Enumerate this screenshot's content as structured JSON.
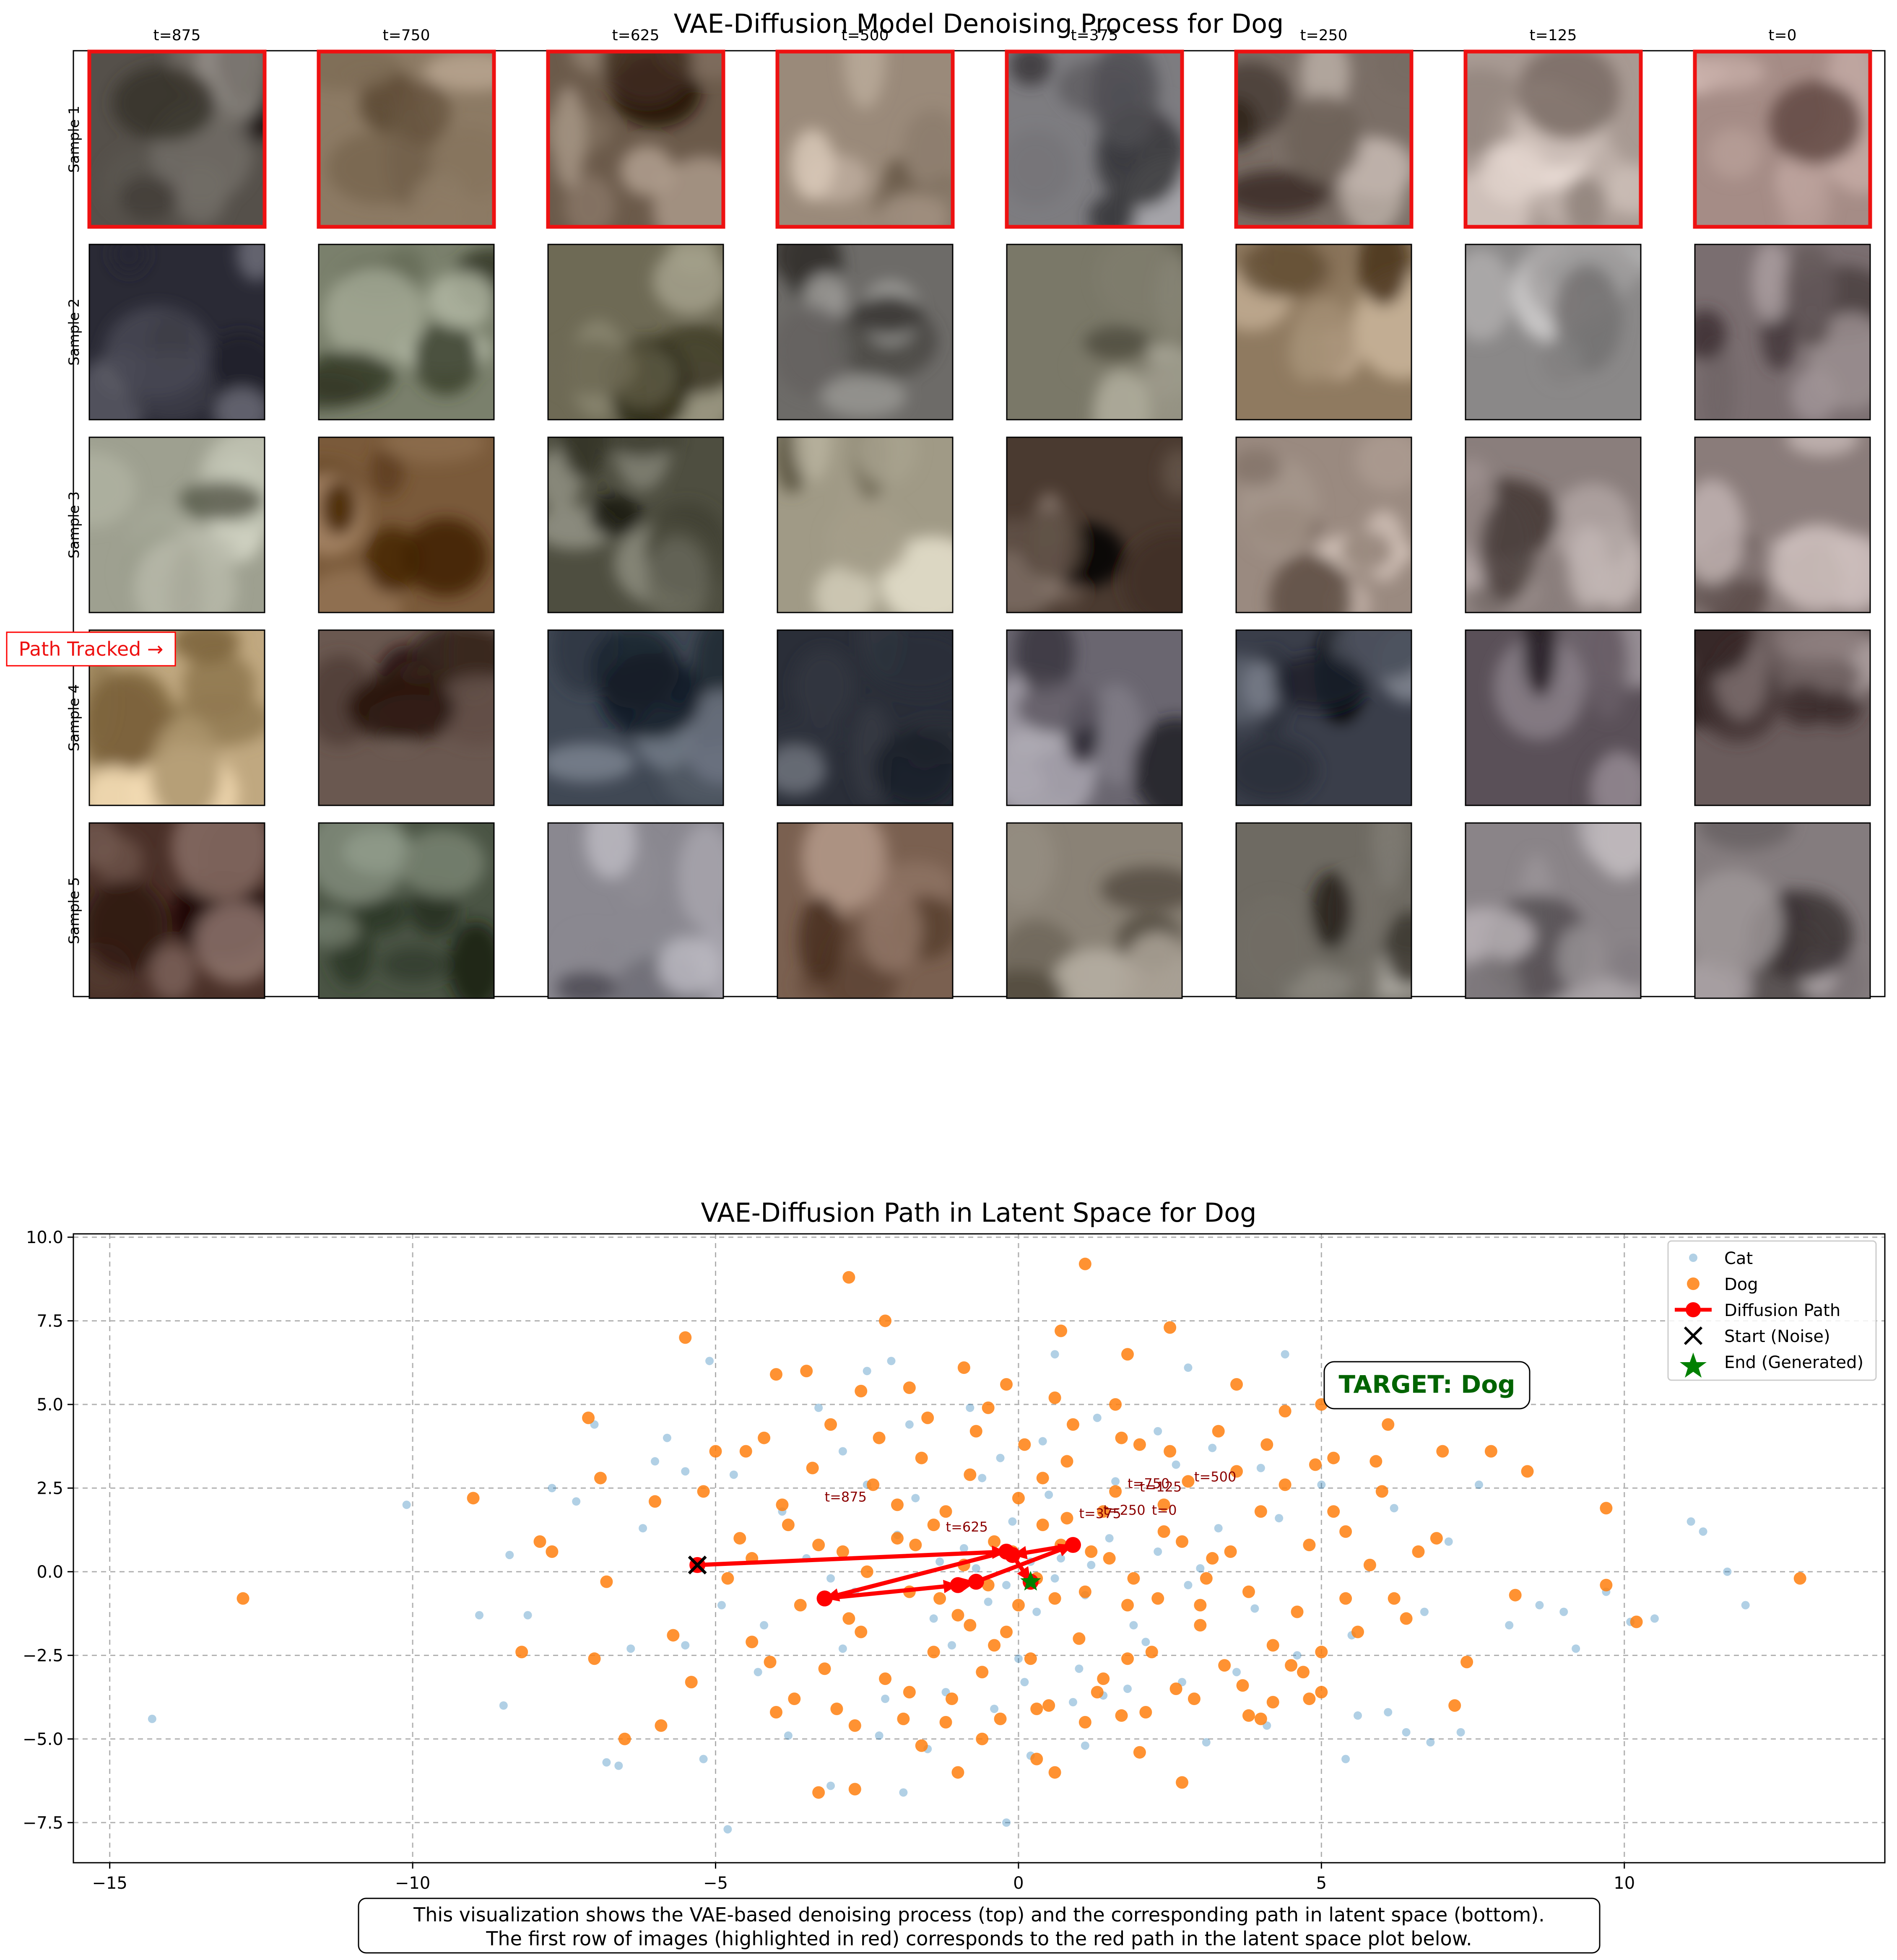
{
  "top": {
    "title": "VAE-Diffusion Model Denoising Process for Dog",
    "column_labels": [
      "t=875",
      "t=750",
      "t=625",
      "t=500",
      "t=375",
      "t=250",
      "t=125",
      "t=0"
    ],
    "row_labels": [
      "Sample 1",
      "Sample 2",
      "Sample 3",
      "Sample 4",
      "Sample 5"
    ],
    "highlight_row": 0,
    "highlight_color": "#ee1111",
    "path_tracked_label": "Path Tracked →",
    "cell_colors": [
      [
        "#55504a",
        "#8c7a64",
        "#6b5a4a",
        "#9a8a7a",
        "#7d7c80",
        "#7a6e66",
        "#a89a93",
        "#a58c86"
      ],
      [
        "#2a2a35",
        "#7a806c",
        "#6e6a55",
        "#6d6b68",
        "#7a7868",
        "#8f7a60",
        "#8a8888",
        "#7a6e70"
      ],
      [
        "#9ea090",
        "#7a5a3a",
        "#4e4e40",
        "#a09a86",
        "#4a3a30",
        "#9a8a80",
        "#8a7e7c",
        "#8a7c7a"
      ],
      [
        "#c0a880",
        "#6a5850",
        "#404854",
        "#2a2e38",
        "#6a6670",
        "#3a3e4a",
        "#5a5058",
        "#6a5c5c"
      ],
      [
        "#4a3028",
        "#4a5444",
        "#8a8890",
        "#7a6050",
        "#8a8276",
        "#6e6a62",
        "#8a8488",
        "#847c7e"
      ]
    ]
  },
  "caption": {
    "line1": "This visualization shows the VAE-based denoising process (top) and the corresponding path in latent space (bottom).",
    "line2": "The first row of images (highlighted in red) corresponds to the red path in the latent space plot below."
  },
  "target_label": "TARGET: Dog",
  "chart_data": {
    "type": "scatter",
    "title": "VAE-Diffusion Path in Latent Space for Dog",
    "xlabel": "",
    "ylabel": "",
    "xlim": [
      -15.6,
      14.3
    ],
    "ylim": [
      -8.7,
      10.1
    ],
    "xticks": [
      -15,
      -10,
      -5,
      0,
      5,
      10
    ],
    "yticks": [
      -7.5,
      -5.0,
      -2.5,
      0.0,
      2.5,
      5.0,
      7.5,
      10.0
    ],
    "grid": true,
    "legend_position": "top-right",
    "legend": [
      "Cat",
      "Dog",
      "Diffusion Path",
      "Start (Noise)",
      "End (Generated)"
    ],
    "cat_color": "#1f77b4",
    "dog_color": "#ff7f0e",
    "path_color": "#ff0000",
    "end_color": "#008000",
    "cat_points": [
      [
        -14.3,
        -4.4
      ],
      [
        -10.1,
        2.0
      ],
      [
        -8.9,
        -1.3
      ],
      [
        -8.5,
        -4.0
      ],
      [
        -8.4,
        0.5
      ],
      [
        -8.1,
        -1.3
      ],
      [
        -7.7,
        2.5
      ],
      [
        -7.3,
        2.1
      ],
      [
        -7.0,
        4.4
      ],
      [
        -6.8,
        -5.7
      ],
      [
        -6.6,
        -5.8
      ],
      [
        -6.4,
        -2.3
      ],
      [
        -5.8,
        4.0
      ],
      [
        -5.5,
        -2.2
      ],
      [
        -5.2,
        -5.6
      ],
      [
        -5.1,
        6.3
      ],
      [
        -4.9,
        -1.0
      ],
      [
        -4.8,
        -7.7
      ],
      [
        -3.1,
        -6.4
      ],
      [
        -2.5,
        6.0
      ],
      [
        -2.1,
        6.3
      ],
      [
        -1.9,
        -6.6
      ],
      [
        -1.5,
        -5.3
      ],
      [
        -0.2,
        -7.5
      ],
      [
        0.2,
        -5.5
      ],
      [
        0.6,
        6.5
      ],
      [
        1.1,
        -5.2
      ],
      [
        2.8,
        6.1
      ],
      [
        3.1,
        -5.1
      ],
      [
        4.1,
        -4.6
      ],
      [
        4.4,
        6.5
      ],
      [
        5.6,
        -4.3
      ],
      [
        5.4,
        -5.6
      ],
      [
        6.1,
        -4.2
      ],
      [
        6.4,
        -4.8
      ],
      [
        6.8,
        -5.1
      ],
      [
        7.3,
        -4.8
      ],
      [
        7.6,
        2.6
      ],
      [
        8.1,
        -1.6
      ],
      [
        8.6,
        -1.0
      ],
      [
        9.0,
        -1.2
      ],
      [
        9.2,
        -2.3
      ],
      [
        9.7,
        -0.6
      ],
      [
        10.1,
        -1.5
      ],
      [
        10.5,
        -1.4
      ],
      [
        11.1,
        1.5
      ],
      [
        11.3,
        1.2
      ],
      [
        11.7,
        0.0
      ],
      [
        12.0,
        -1.0
      ],
      [
        -6.2,
        1.3
      ],
      [
        -6.0,
        3.3
      ],
      [
        -5.5,
        3.0
      ],
      [
        -4.7,
        2.9
      ],
      [
        -4.3,
        -3.0
      ],
      [
        -3.8,
        -4.9
      ],
      [
        -3.3,
        4.9
      ],
      [
        -2.9,
        3.6
      ],
      [
        -2.3,
        -4.9
      ],
      [
        -1.8,
        4.4
      ],
      [
        -1.2,
        -3.6
      ],
      [
        -0.8,
        4.9
      ],
      [
        -0.4,
        -4.1
      ],
      [
        0.4,
        3.9
      ],
      [
        0.9,
        -3.9
      ],
      [
        1.3,
        4.6
      ],
      [
        1.8,
        -3.5
      ],
      [
        2.3,
        4.2
      ],
      [
        2.7,
        -3.3
      ],
      [
        3.2,
        3.7
      ],
      [
        3.6,
        -3.0
      ],
      [
        4.0,
        3.1
      ],
      [
        4.6,
        -2.5
      ],
      [
        5.0,
        2.6
      ],
      [
        5.5,
        -1.9
      ],
      [
        6.2,
        1.9
      ],
      [
        6.7,
        -1.2
      ],
      [
        7.1,
        0.9
      ],
      [
        -3.5,
        0.4
      ],
      [
        -2.7,
        -0.6
      ],
      [
        -2.0,
        1.1
      ],
      [
        -1.4,
        -1.4
      ],
      [
        -0.9,
        0.7
      ],
      [
        -0.5,
        -0.9
      ],
      [
        -0.1,
        1.5
      ],
      [
        0.3,
        -1.2
      ],
      [
        0.7,
        0.4
      ],
      [
        1.1,
        -0.7
      ],
      [
        1.5,
        1.0
      ],
      [
        1.9,
        -1.6
      ],
      [
        2.3,
        0.6
      ],
      [
        2.8,
        -0.4
      ],
      [
        3.3,
        1.3
      ],
      [
        -1.7,
        2.2
      ],
      [
        -1.1,
        -2.2
      ],
      [
        -0.6,
        2.8
      ],
      [
        0.0,
        -2.6
      ],
      [
        0.5,
        2.3
      ],
      [
        1.0,
        -2.9
      ],
      [
        1.6,
        2.7
      ],
      [
        2.1,
        -2.1
      ],
      [
        -3.9,
        1.8
      ],
      [
        -4.2,
        -1.6
      ],
      [
        -2.5,
        2.6
      ],
      [
        -2.9,
        -2.3
      ],
      [
        3.9,
        -1.1
      ],
      [
        4.3,
        1.6
      ],
      [
        2.6,
        3.2
      ],
      [
        -0.3,
        3.4
      ],
      [
        0.1,
        -3.3
      ],
      [
        1.4,
        -3.7
      ],
      [
        -2.2,
        -3.8
      ],
      [
        -3.1,
        -0.2
      ],
      [
        3.0,
        0.1
      ],
      [
        -0.7,
        0.1
      ],
      [
        0.2,
        0.3
      ],
      [
        -0.2,
        -0.4
      ],
      [
        0.6,
        -0.2
      ],
      [
        -1.3,
        0.3
      ],
      [
        1.2,
        0.2
      ]
    ],
    "dog_points": [
      [
        -12.8,
        -0.8
      ],
      [
        -9.0,
        2.2
      ],
      [
        -8.2,
        -2.4
      ],
      [
        -7.9,
        0.9
      ],
      [
        -7.7,
        0.6
      ],
      [
        -7.1,
        4.6
      ],
      [
        -7.0,
        -2.6
      ],
      [
        -6.9,
        2.8
      ],
      [
        -6.8,
        -0.3
      ],
      [
        -6.5,
        -5.0
      ],
      [
        -6.0,
        2.1
      ],
      [
        -5.9,
        -4.6
      ],
      [
        -5.7,
        -1.9
      ],
      [
        -5.5,
        7.0
      ],
      [
        -5.4,
        -3.3
      ],
      [
        -4.6,
        1.0
      ],
      [
        -4.4,
        -2.1
      ],
      [
        -4.2,
        4.0
      ],
      [
        -4.0,
        5.9
      ],
      [
        -3.5,
        6.0
      ],
      [
        -3.3,
        -6.6
      ],
      [
        -3.0,
        -4.1
      ],
      [
        -2.8,
        8.8
      ],
      [
        -2.7,
        -6.5
      ],
      [
        -2.6,
        5.4
      ],
      [
        -2.2,
        7.5
      ],
      [
        -1.8,
        5.5
      ],
      [
        -1.8,
        -3.6
      ],
      [
        -1.2,
        -4.5
      ],
      [
        -1.0,
        -6.0
      ],
      [
        -0.9,
        6.1
      ],
      [
        -0.5,
        4.9
      ],
      [
        -0.2,
        5.6
      ],
      [
        0.3,
        -4.1
      ],
      [
        0.3,
        -5.6
      ],
      [
        0.6,
        -6.0
      ],
      [
        0.7,
        7.2
      ],
      [
        1.1,
        9.2
      ],
      [
        1.1,
        -4.5
      ],
      [
        1.7,
        -4.3
      ],
      [
        1.8,
        6.5
      ],
      [
        2.0,
        -5.4
      ],
      [
        2.5,
        7.3
      ],
      [
        2.7,
        -6.3
      ],
      [
        3.6,
        5.6
      ],
      [
        3.8,
        -4.3
      ],
      [
        4.0,
        -4.4
      ],
      [
        4.2,
        -3.9
      ],
      [
        4.7,
        -3.0
      ],
      [
        4.8,
        -3.8
      ],
      [
        5.0,
        5.0
      ],
      [
        5.2,
        1.8
      ],
      [
        5.4,
        -0.8
      ],
      [
        5.9,
        3.3
      ],
      [
        6.1,
        4.4
      ],
      [
        6.4,
        -1.4
      ],
      [
        6.6,
        0.6
      ],
      [
        6.9,
        1.0
      ],
      [
        7.0,
        3.6
      ],
      [
        7.2,
        -4.0
      ],
      [
        7.4,
        -2.7
      ],
      [
        7.8,
        3.6
      ],
      [
        8.2,
        -0.7
      ],
      [
        8.4,
        3.0
      ],
      [
        9.7,
        1.9
      ],
      [
        9.7,
        -0.4
      ],
      [
        10.2,
        -1.5
      ],
      [
        12.9,
        -0.2
      ],
      [
        -5.2,
        2.4
      ],
      [
        -4.8,
        -0.2
      ],
      [
        -4.5,
        3.6
      ],
      [
        -4.1,
        -2.7
      ],
      [
        -3.8,
        1.4
      ],
      [
        -3.6,
        -1.0
      ],
      [
        -3.4,
        3.1
      ],
      [
        -3.2,
        -2.9
      ],
      [
        -2.9,
        0.6
      ],
      [
        -2.6,
        -1.8
      ],
      [
        -2.4,
        2.6
      ],
      [
        -2.2,
        -3.2
      ],
      [
        -2.0,
        1.0
      ],
      [
        -1.8,
        -0.6
      ],
      [
        -1.6,
        3.4
      ],
      [
        -1.4,
        -2.4
      ],
      [
        -1.2,
        1.8
      ],
      [
        -1.0,
        -1.3
      ],
      [
        -0.8,
        2.9
      ],
      [
        -0.6,
        -3.0
      ],
      [
        -0.4,
        0.9
      ],
      [
        -0.2,
        -1.8
      ],
      [
        0.0,
        2.2
      ],
      [
        0.2,
        -2.6
      ],
      [
        0.4,
        1.4
      ],
      [
        0.6,
        -0.8
      ],
      [
        0.8,
        3.3
      ],
      [
        1.0,
        -2.0
      ],
      [
        1.2,
        0.6
      ],
      [
        1.4,
        -3.2
      ],
      [
        1.6,
        2.4
      ],
      [
        1.8,
        -1.0
      ],
      [
        2.0,
        3.8
      ],
      [
        2.2,
        -2.4
      ],
      [
        2.4,
        1.2
      ],
      [
        2.6,
        -3.5
      ],
      [
        2.8,
        2.7
      ],
      [
        3.0,
        -1.6
      ],
      [
        3.2,
        0.4
      ],
      [
        3.4,
        -2.8
      ],
      [
        3.6,
        3.0
      ],
      [
        3.8,
        -0.6
      ],
      [
        4.0,
        1.8
      ],
      [
        4.2,
        -2.2
      ],
      [
        4.4,
        2.6
      ],
      [
        4.6,
        -1.2
      ],
      [
        4.8,
        0.8
      ],
      [
        5.0,
        -2.4
      ],
      [
        5.2,
        3.4
      ],
      [
        5.4,
        1.2
      ],
      [
        5.6,
        -1.8
      ],
      [
        5.8,
        0.2
      ],
      [
        6.0,
        2.4
      ],
      [
        6.2,
        -0.8
      ],
      [
        -4.4,
        0.4
      ],
      [
        -3.9,
        2.0
      ],
      [
        -3.7,
        -3.8
      ],
      [
        -3.1,
        4.4
      ],
      [
        -2.7,
        -4.6
      ],
      [
        -2.3,
        4.0
      ],
      [
        -1.9,
        -4.4
      ],
      [
        -1.5,
        4.6
      ],
      [
        -1.1,
        -3.8
      ],
      [
        -0.7,
        4.2
      ],
      [
        -0.3,
        -4.4
      ],
      [
        0.1,
        3.8
      ],
      [
        0.5,
        -4.0
      ],
      [
        0.9,
        4.4
      ],
      [
        1.3,
        -3.6
      ],
      [
        1.7,
        4.0
      ],
      [
        2.1,
        -4.2
      ],
      [
        2.5,
        3.6
      ],
      [
        2.9,
        -3.8
      ],
      [
        3.3,
        4.2
      ],
      [
        3.7,
        -3.4
      ],
      [
        4.1,
        3.8
      ],
      [
        4.5,
        -2.8
      ],
      [
        4.9,
        3.2
      ],
      [
        -0.9,
        0.2
      ],
      [
        -0.5,
        -0.4
      ],
      [
        -0.1,
        0.6
      ],
      [
        0.3,
        -0.2
      ],
      [
        0.7,
        0.8
      ],
      [
        1.1,
        -0.6
      ],
      [
        1.5,
        0.4
      ],
      [
        1.9,
        -0.2
      ],
      [
        -1.7,
        0.8
      ],
      [
        -1.3,
        -0.8
      ],
      [
        2.3,
        -0.8
      ],
      [
        2.7,
        0.9
      ],
      [
        -2.5,
        0.0
      ],
      [
        3.1,
        -0.2
      ],
      [
        -3.3,
        0.8
      ],
      [
        3.5,
        0.6
      ],
      [
        0.0,
        -1.0
      ],
      [
        -0.8,
        -1.6
      ],
      [
        0.8,
        1.6
      ],
      [
        1.4,
        1.8
      ],
      [
        -1.4,
        1.4
      ],
      [
        0.4,
        2.8
      ],
      [
        -0.4,
        -2.2
      ],
      [
        1.8,
        -2.6
      ],
      [
        -2.0,
        2.0
      ],
      [
        2.4,
        2.0
      ],
      [
        -2.8,
        -1.4
      ],
      [
        3.0,
        -1.0
      ],
      [
        0.6,
        5.2
      ],
      [
        -0.6,
        -5.0
      ],
      [
        1.6,
        5.0
      ],
      [
        -1.6,
        -5.2
      ],
      [
        4.4,
        4.8
      ],
      [
        -4.0,
        -4.2
      ],
      [
        5.0,
        -3.6
      ],
      [
        -5.0,
        3.6
      ]
    ],
    "diffusion_path": {
      "points": [
        {
          "label": "t=875",
          "x": -5.3,
          "y": 0.2
        },
        {
          "label": "t=750",
          "x": -0.2,
          "y": 0.6
        },
        {
          "label": "t=625",
          "x": -3.2,
          "y": -0.8
        },
        {
          "label": "t=500",
          "x": -1.0,
          "y": -0.4
        },
        {
          "label": "t=375",
          "x": -0.7,
          "y": -0.3
        },
        {
          "label": "t=250",
          "x": 0.9,
          "y": 0.8
        },
        {
          "label": "t=125",
          "x": -0.1,
          "y": 0.5
        },
        {
          "label": "t=0",
          "x": 0.2,
          "y": -0.3
        }
      ],
      "annotations": [
        {
          "text": "t=875",
          "x": -3.2,
          "y": 2.1
        },
        {
          "text": "t=750",
          "x": 1.8,
          "y": 2.5
        },
        {
          "text": "t=625",
          "x": -1.2,
          "y": 1.2
        },
        {
          "text": "t=500",
          "x": 2.9,
          "y": 2.7
        },
        {
          "text": "t=375",
          "x": 1.0,
          "y": 1.6
        },
        {
          "text": "t=250",
          "x": 1.4,
          "y": 1.7
        },
        {
          "text": "t=125",
          "x": 2.0,
          "y": 2.4
        },
        {
          "text": "t=0",
          "x": 2.2,
          "y": 1.7
        }
      ],
      "start": {
        "x": -5.3,
        "y": 0.2
      },
      "end": {
        "x": 0.2,
        "y": -0.3
      }
    }
  }
}
